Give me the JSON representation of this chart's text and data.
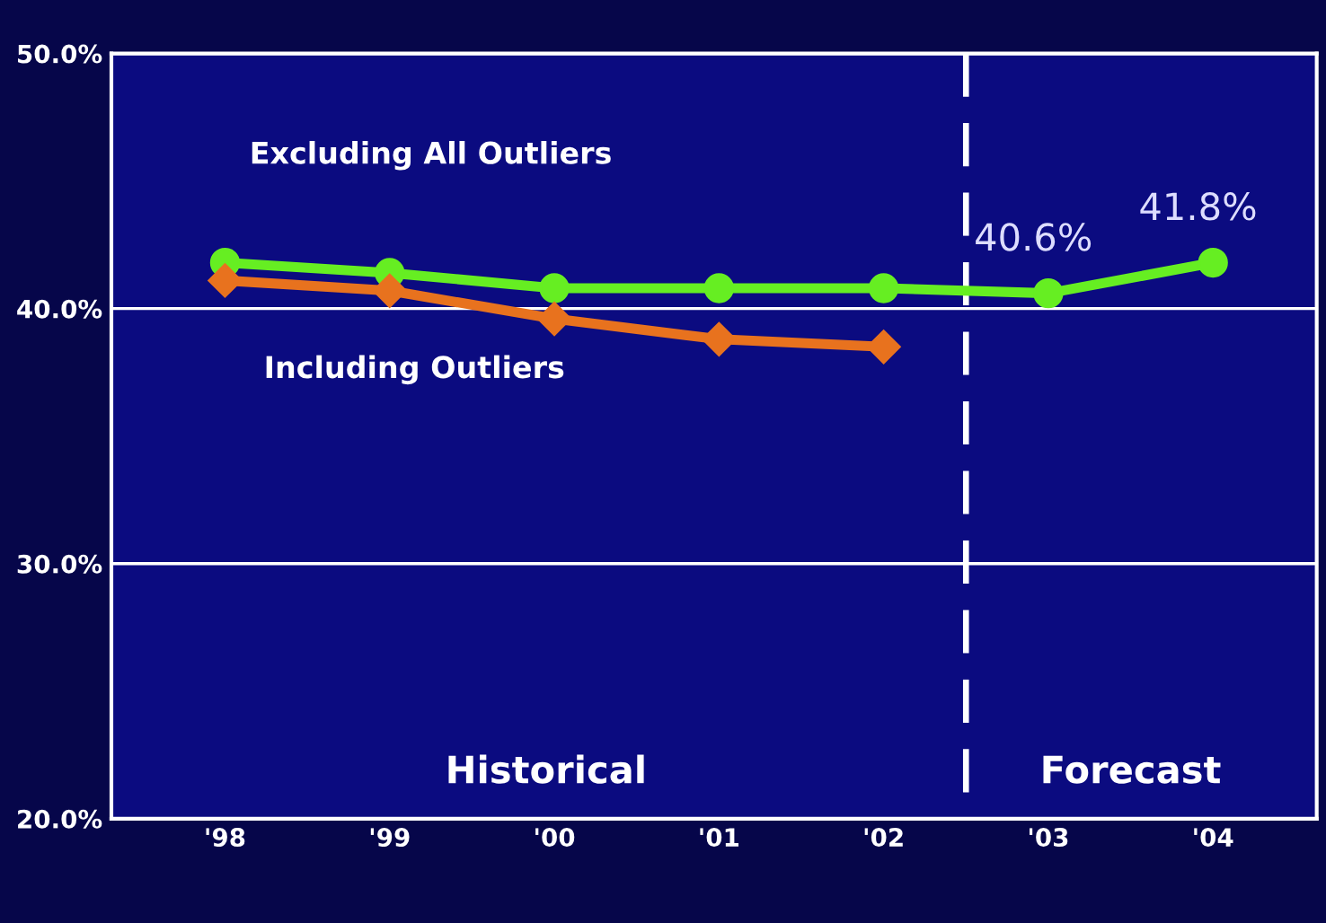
{
  "chart_data": {
    "type": "line",
    "categories": [
      "'98",
      "'99",
      "'00",
      "'01",
      "'02",
      "'03",
      "'04"
    ],
    "series": [
      {
        "name": "Excluding All Outliers",
        "color": "#66ee22",
        "marker": "circle",
        "values": [
          41.8,
          41.4,
          40.8,
          40.8,
          40.8,
          40.6,
          41.8
        ],
        "value_labels": [
          null,
          null,
          null,
          null,
          null,
          "40.6%",
          "41.8%"
        ]
      },
      {
        "name": "Including Outliers",
        "color": "#e8721e",
        "marker": "diamond",
        "values": [
          41.1,
          40.7,
          39.6,
          38.8,
          38.5,
          null,
          null
        ]
      }
    ],
    "ylim": [
      20,
      50
    ],
    "yticks": [
      {
        "value": 20,
        "label": "20.0%"
      },
      {
        "value": 30,
        "label": "30.0%"
      },
      {
        "value": 40,
        "label": "40.0%"
      },
      {
        "value": 50,
        "label": "50.0%"
      }
    ],
    "grid": "y",
    "annotations": [
      "Historical",
      "Forecast"
    ]
  }
}
